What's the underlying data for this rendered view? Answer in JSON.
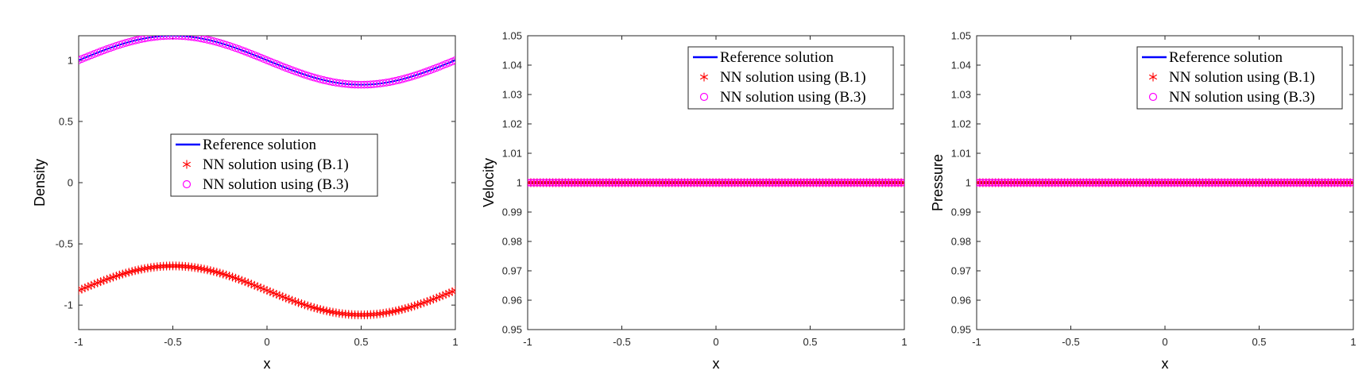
{
  "chart_data": [
    {
      "type": "line",
      "xlabel": "x",
      "ylabel": "Density",
      "xlim": [
        -1,
        1
      ],
      "ylim": [
        -1.2,
        1.2
      ],
      "xticks": [
        -1,
        -0.5,
        0,
        0.5,
        1
      ],
      "xtick_labels": [
        "-1",
        "-0.5",
        "0",
        "0.5",
        "1"
      ],
      "yticks": [
        -1,
        -0.5,
        0,
        0.5,
        1
      ],
      "ytick_labels": [
        "-1",
        "-0.5",
        "0",
        "0.5",
        "1"
      ],
      "grid": false,
      "legend_position": "center",
      "series": [
        {
          "name": "Reference solution",
          "marker": "line",
          "color": "#0000ff",
          "formula": "1 - 0.2*sin(pi*x)",
          "x": [
            -1,
            -0.75,
            -0.5,
            -0.25,
            0,
            0.25,
            0.5,
            0.75,
            1
          ],
          "y": [
            1.0,
            1.141,
            1.2,
            1.141,
            1.0,
            0.859,
            0.8,
            0.859,
            1.0
          ]
        },
        {
          "name": "NN solution using (B.1)",
          "marker": "asterisk",
          "color": "#ff0000",
          "formula": "-0.88 - 0.2*sin(pi*x)",
          "x": [
            -1,
            -0.75,
            -0.5,
            -0.25,
            0,
            0.25,
            0.5,
            0.75,
            1
          ],
          "y": [
            -0.88,
            -0.739,
            -0.68,
            -0.739,
            -0.88,
            -1.021,
            -1.08,
            -1.021,
            -0.88
          ]
        },
        {
          "name": "NN solution using (B.3)",
          "marker": "circle",
          "color": "#ff00ff",
          "formula": "1 - 0.2*sin(pi*x)",
          "x": [
            -1,
            -0.75,
            -0.5,
            -0.25,
            0,
            0.25,
            0.5,
            0.75,
            1
          ],
          "y": [
            1.0,
            1.141,
            1.2,
            1.141,
            1.0,
            0.859,
            0.8,
            0.859,
            1.0
          ]
        }
      ]
    },
    {
      "type": "line",
      "xlabel": "x",
      "ylabel": "Velocity",
      "xlim": [
        -1,
        1
      ],
      "ylim": [
        0.95,
        1.05
      ],
      "xticks": [
        -1,
        -0.5,
        0,
        0.5,
        1
      ],
      "xtick_labels": [
        "-1",
        "-0.5",
        "0",
        "0.5",
        "1"
      ],
      "yticks": [
        0.95,
        0.96,
        0.97,
        0.98,
        0.99,
        1,
        1.01,
        1.02,
        1.03,
        1.04,
        1.05
      ],
      "ytick_labels": [
        "0.95",
        "0.96",
        "0.97",
        "0.98",
        "0.99",
        "1",
        "1.01",
        "1.02",
        "1.03",
        "1.04",
        "1.05"
      ],
      "grid": false,
      "legend_position": "top-right",
      "series": [
        {
          "name": "Reference solution",
          "marker": "line",
          "color": "#0000ff",
          "formula": "1",
          "x": [
            -1,
            1
          ],
          "y": [
            1,
            1
          ]
        },
        {
          "name": "NN solution using (B.1)",
          "marker": "asterisk",
          "color": "#ff0000",
          "formula": "1",
          "x": [
            -1,
            1
          ],
          "y": [
            1,
            1
          ]
        },
        {
          "name": "NN solution using (B.3)",
          "marker": "circle",
          "color": "#ff00ff",
          "formula": "1",
          "x": [
            -1,
            1
          ],
          "y": [
            1,
            1
          ]
        }
      ]
    },
    {
      "type": "line",
      "xlabel": "x",
      "ylabel": "Pressure",
      "xlim": [
        -1,
        1
      ],
      "ylim": [
        0.95,
        1.05
      ],
      "xticks": [
        -1,
        -0.5,
        0,
        0.5,
        1
      ],
      "xtick_labels": [
        "-1",
        "-0.5",
        "0",
        "0.5",
        "1"
      ],
      "yticks": [
        0.95,
        0.96,
        0.97,
        0.98,
        0.99,
        1,
        1.01,
        1.02,
        1.03,
        1.04,
        1.05
      ],
      "ytick_labels": [
        "0.95",
        "0.96",
        "0.97",
        "0.98",
        "0.99",
        "1",
        "1.01",
        "1.02",
        "1.03",
        "1.04",
        "1.05"
      ],
      "grid": false,
      "legend_position": "top-right",
      "series": [
        {
          "name": "Reference solution",
          "marker": "line",
          "color": "#0000ff",
          "formula": "1",
          "x": [
            -1,
            1
          ],
          "y": [
            1,
            1
          ]
        },
        {
          "name": "NN solution using (B.1)",
          "marker": "asterisk",
          "color": "#ff0000",
          "formula": "1",
          "x": [
            -1,
            1
          ],
          "y": [
            1,
            1
          ]
        },
        {
          "name": "NN solution using (B.3)",
          "marker": "circle",
          "color": "#ff00ff",
          "formula": "1",
          "x": [
            -1,
            1
          ],
          "y": [
            1,
            1
          ]
        }
      ]
    }
  ]
}
